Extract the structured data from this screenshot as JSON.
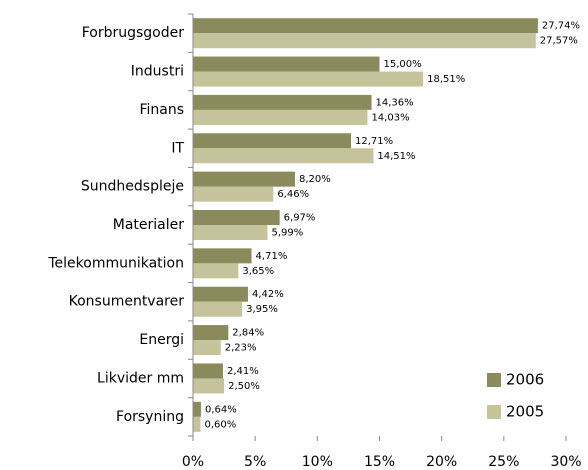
{
  "chart_data": {
    "type": "bar",
    "orientation": "horizontal",
    "categories": [
      "Forbrugsgoder",
      "Industri",
      "Finans",
      "IT",
      "Sundhedspleje",
      "Materialer",
      "Telekommunikation",
      "Konsumentvarer",
      "Energi",
      "Likvider mm",
      "Forsyning"
    ],
    "series": [
      {
        "name": "2006",
        "color": "#8b8a5c",
        "values": [
          27.74,
          15.0,
          14.36,
          12.71,
          8.2,
          6.97,
          4.71,
          4.42,
          2.84,
          2.41,
          0.64
        ],
        "value_labels": [
          "27,74%",
          "15,00%",
          "14,36%",
          "12,71%",
          "8,20%",
          "6,97%",
          "4,71%",
          "4,42%",
          "2,84%",
          "2,41%",
          "0,64%"
        ]
      },
      {
        "name": "2005",
        "color": "#c4c39c",
        "values": [
          27.57,
          18.51,
          14.03,
          14.51,
          6.46,
          5.99,
          3.65,
          3.95,
          2.23,
          2.5,
          0.6
        ],
        "value_labels": [
          "27,57%",
          "18,51%",
          "14,03%",
          "14,51%",
          "6,46%",
          "5,99%",
          "3,65%",
          "3,95%",
          "2,23%",
          "2,50%",
          "0,60%"
        ]
      }
    ],
    "xlim": [
      0,
      30
    ],
    "xticks": [
      {
        "value": 0,
        "label": "0%"
      },
      {
        "value": 5,
        "label": "5%"
      },
      {
        "value": 10,
        "label": "10%"
      },
      {
        "value": 15,
        "label": "15%"
      },
      {
        "value": 20,
        "label": "20%"
      },
      {
        "value": 25,
        "label": "25%"
      },
      {
        "value": 30,
        "label": "30%"
      }
    ],
    "legend": "lower right",
    "grid": false
  }
}
